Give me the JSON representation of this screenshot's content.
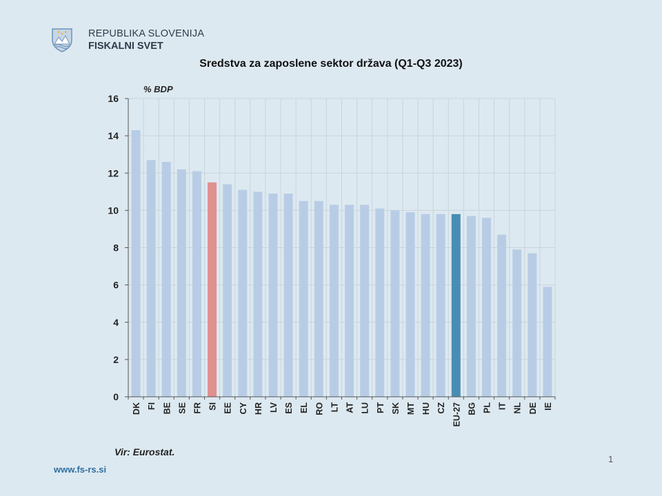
{
  "header": {
    "org_line1": "REPUBLIKA SLOVENIJA",
    "org_line2": "FISKALNI SVET"
  },
  "colors": {
    "background": "#dde9f1",
    "bar_default": "#b8cde5",
    "bar_highlight_si": "#e0908e",
    "bar_highlight_eu": "#4a8db3",
    "gridline": "#c9d3da"
  },
  "chart_data": {
    "type": "bar",
    "title": "Sredstva za zaposlene sektor država (Q1-Q3 2023)",
    "ylabel": "% BDP",
    "xlabel": "",
    "ylim": [
      0,
      16
    ],
    "yticks": [
      0,
      2,
      4,
      6,
      8,
      10,
      12,
      14,
      16
    ],
    "grid": true,
    "categories": [
      "DK",
      "FI",
      "BE",
      "SE",
      "FR",
      "SI",
      "EE",
      "CY",
      "HR",
      "LV",
      "ES",
      "EL",
      "RO",
      "LT",
      "AT",
      "LU",
      "PT",
      "SK",
      "MT",
      "HU",
      "CZ",
      "EU-27",
      "BG",
      "PL",
      "IT",
      "NL",
      "DE",
      "IE"
    ],
    "values": [
      14.3,
      12.7,
      12.6,
      12.2,
      12.1,
      11.5,
      11.4,
      11.1,
      11.0,
      10.9,
      10.9,
      10.5,
      10.5,
      10.3,
      10.3,
      10.3,
      10.1,
      10.0,
      9.9,
      9.8,
      9.8,
      9.8,
      9.7,
      9.6,
      8.7,
      7.9,
      7.7,
      5.9
    ],
    "highlights": {
      "SI": "bar_highlight_si",
      "EU-27": "bar_highlight_eu"
    }
  },
  "footer": {
    "source": "Vir: Eurostat.",
    "page_number": "1",
    "website": "www.fs-rs.si"
  }
}
